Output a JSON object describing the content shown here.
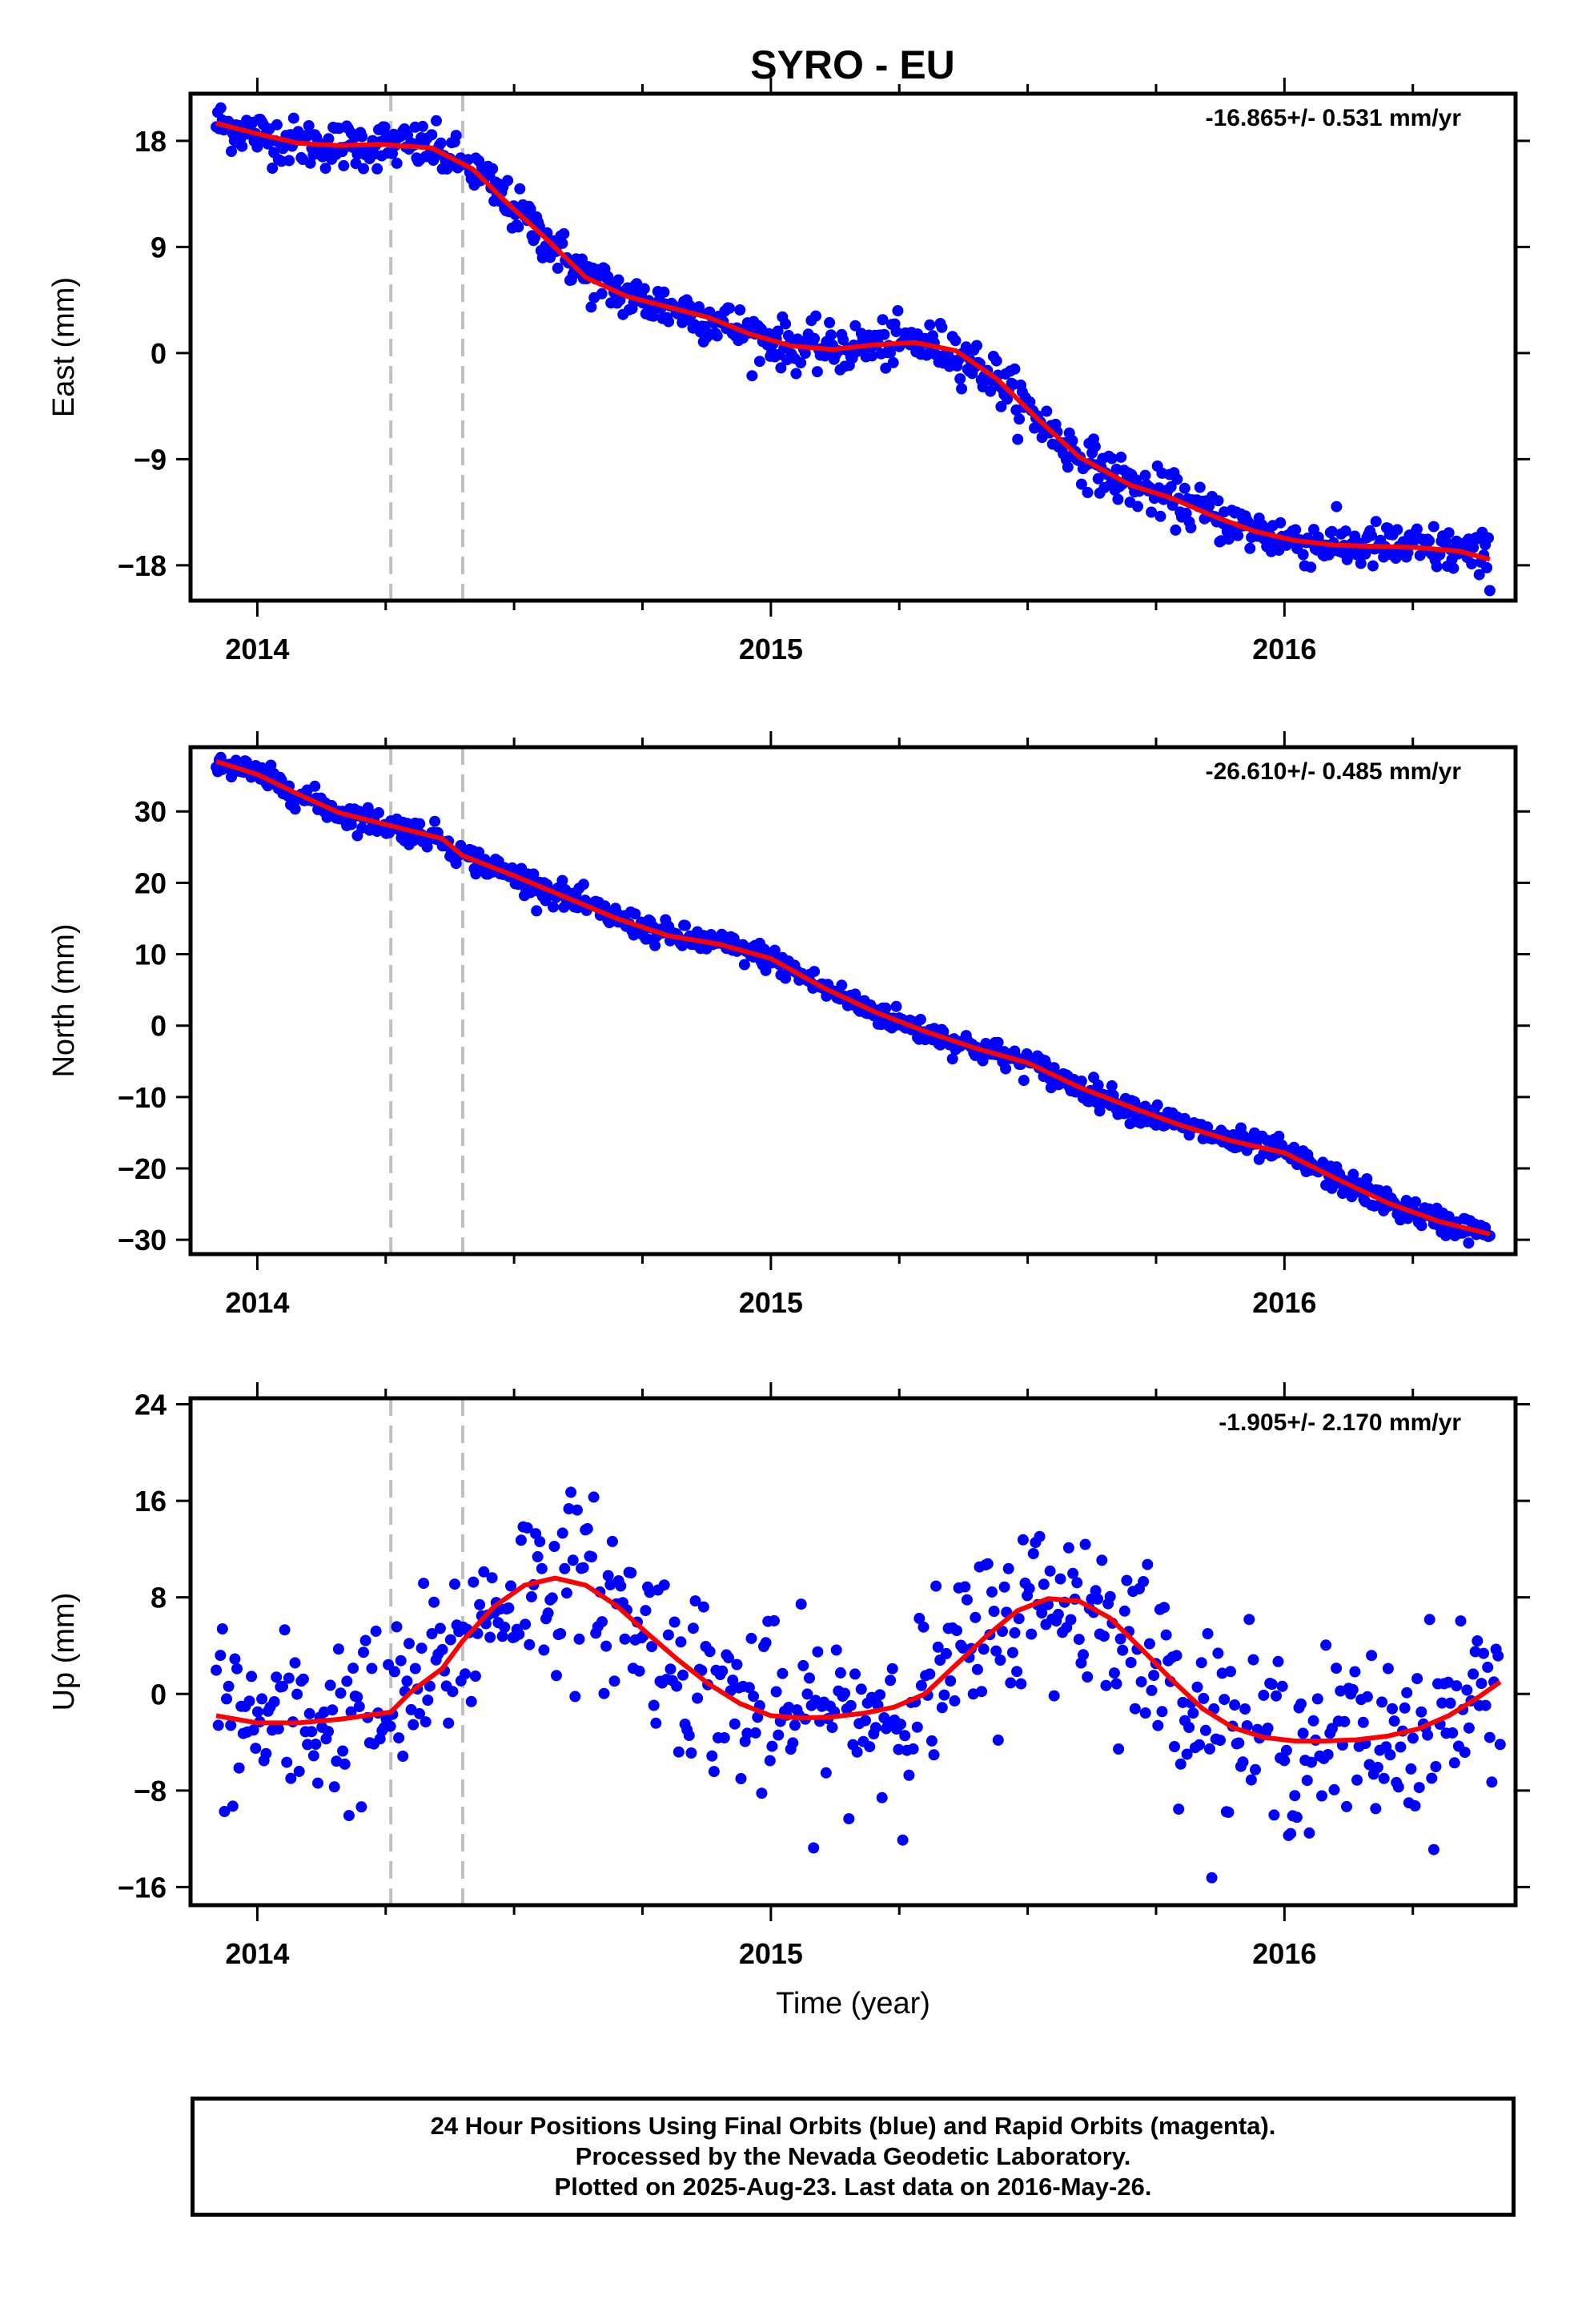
{
  "chart_data": [
    {
      "type": "scatter",
      "title": "SYRO - EU",
      "ylabel": "East (mm)",
      "xlabel": "",
      "rate_label": "-16.865+/- 0.531 mm/yr",
      "xlim": [
        2013.87,
        2016.45
      ],
      "ylim": [
        -21,
        22
      ],
      "yticks": [
        -18,
        -9,
        0,
        9,
        18
      ],
      "xticks": [
        2014,
        2015,
        2016
      ],
      "colors": {
        "points": "#0000ff",
        "fit": "#ff0000",
        "break_lines": "#c0c0c0"
      },
      "breaks": [
        2014.26,
        2014.4
      ],
      "series": [
        {
          "kind": "points",
          "x": [
            2013.92,
            2014.0,
            2014.08,
            2014.16,
            2014.24,
            2014.34,
            2014.42,
            2014.48,
            2014.56,
            2014.64,
            2014.72,
            2014.8,
            2014.88,
            2014.96,
            2015.04,
            2015.12,
            2015.2,
            2015.28,
            2015.36,
            2015.44,
            2015.52,
            2015.6,
            2015.7,
            2015.78,
            2015.86,
            2015.94,
            2016.02,
            2016.1,
            2016.18,
            2016.26,
            2016.34,
            2016.4
          ],
          "y": [
            19.5,
            18.6,
            17.8,
            17.6,
            17.7,
            17.4,
            15.6,
            13.0,
            9.8,
            6.4,
            4.8,
            3.9,
            3.0,
            1.6,
            0.6,
            0.3,
            0.7,
            0.9,
            0.2,
            -2.2,
            -5.6,
            -8.8,
            -11.2,
            -12.3,
            -13.8,
            -15.1,
            -15.9,
            -16.3,
            -16.4,
            -16.5,
            -16.8,
            -17.5
          ]
        },
        {
          "kind": "fit",
          "x": [
            2013.92,
            2014.0,
            2014.08,
            2014.16,
            2014.24,
            2014.34,
            2014.42,
            2014.48,
            2014.56,
            2014.64,
            2014.72,
            2014.8,
            2014.88,
            2014.96,
            2015.04,
            2015.12,
            2015.2,
            2015.28,
            2015.36,
            2015.44,
            2015.52,
            2015.6,
            2015.7,
            2015.78,
            2015.86,
            2015.94,
            2016.02,
            2016.1,
            2016.18,
            2016.26,
            2016.34,
            2016.4
          ],
          "y": [
            19.5,
            18.6,
            17.8,
            17.6,
            17.7,
            17.4,
            15.6,
            13.0,
            9.8,
            6.4,
            4.8,
            3.9,
            3.0,
            1.6,
            0.6,
            0.3,
            0.7,
            0.9,
            0.2,
            -2.2,
            -5.6,
            -8.8,
            -11.2,
            -12.3,
            -13.8,
            -15.1,
            -15.9,
            -16.3,
            -16.4,
            -16.5,
            -16.8,
            -17.5
          ]
        }
      ]
    },
    {
      "type": "scatter",
      "title": "",
      "ylabel": "North (mm)",
      "xlabel": "",
      "rate_label": "-26.610+/- 0.485 mm/yr",
      "xlim": [
        2013.87,
        2016.45
      ],
      "ylim": [
        -32,
        39
      ],
      "yticks": [
        -30,
        -20,
        -10,
        0,
        10,
        20,
        30
      ],
      "xticks": [
        2014,
        2015,
        2016
      ],
      "colors": {
        "points": "#0000ff",
        "fit": "#ff0000",
        "break_lines": "#c0c0c0"
      },
      "breaks": [
        2014.26,
        2014.4
      ],
      "series": [
        {
          "kind": "points",
          "x": [
            2013.92,
            2014.0,
            2014.08,
            2014.16,
            2014.26,
            2014.36,
            2014.4,
            2014.5,
            2014.6,
            2014.7,
            2014.8,
            2014.9,
            2015.0,
            2015.1,
            2015.2,
            2015.3,
            2015.4,
            2015.5,
            2015.6,
            2015.7,
            2015.8,
            2015.9,
            2016.0,
            2016.1,
            2016.2,
            2016.3,
            2016.4
          ],
          "y": [
            37.0,
            35.2,
            32.4,
            29.8,
            28.0,
            26.2,
            23.8,
            21.0,
            18.0,
            15.0,
            12.6,
            11.4,
            9.4,
            5.4,
            2.0,
            -0.8,
            -3.2,
            -5.2,
            -8.6,
            -11.4,
            -14.0,
            -16.2,
            -17.8,
            -21.4,
            -24.8,
            -27.4,
            -29.2
          ]
        },
        {
          "kind": "fit",
          "x": [
            2013.92,
            2014.0,
            2014.08,
            2014.16,
            2014.26,
            2014.36,
            2014.4,
            2014.5,
            2014.6,
            2014.7,
            2014.8,
            2014.9,
            2015.0,
            2015.1,
            2015.2,
            2015.3,
            2015.4,
            2015.5,
            2015.6,
            2015.7,
            2015.8,
            2015.9,
            2016.0,
            2016.1,
            2016.2,
            2016.3,
            2016.4
          ],
          "y": [
            37.0,
            35.2,
            32.4,
            29.8,
            28.0,
            26.2,
            23.8,
            21.0,
            18.0,
            15.0,
            12.6,
            11.4,
            9.4,
            5.4,
            2.0,
            -0.8,
            -3.2,
            -5.2,
            -8.6,
            -11.4,
            -14.0,
            -16.2,
            -17.8,
            -21.4,
            -24.8,
            -27.4,
            -29.2
          ]
        }
      ]
    },
    {
      "type": "scatter",
      "title": "",
      "ylabel": "Up (mm)",
      "xlabel": "Time (year)",
      "rate_label": "-1.905+/- 2.170 mm/yr",
      "xlim": [
        2013.87,
        2016.45
      ],
      "ylim": [
        -17.5,
        24.5
      ],
      "yticks": [
        -16,
        -8,
        0,
        8,
        16,
        24
      ],
      "xticks": [
        2014,
        2015,
        2016
      ],
      "colors": {
        "points": "#0000ff",
        "fit": "#ff0000",
        "break_lines": "#c0c0c0"
      },
      "breaks": [
        2014.26,
        2014.4
      ],
      "series": [
        {
          "kind": "points",
          "x": [
            2013.92,
            2014.0,
            2014.08,
            2014.16,
            2014.26,
            2014.3,
            2014.36,
            2014.4,
            2014.46,
            2014.52,
            2014.58,
            2014.64,
            2014.7,
            2014.76,
            2014.82,
            2014.88,
            2014.94,
            2015.0,
            2015.06,
            2015.12,
            2015.18,
            2015.24,
            2015.3,
            2015.36,
            2015.42,
            2015.48,
            2015.54,
            2015.6,
            2015.66,
            2015.72,
            2015.78,
            2015.84,
            2015.9,
            2015.96,
            2016.02,
            2016.08,
            2016.14,
            2016.2,
            2016.26,
            2016.32,
            2016.38,
            2016.42
          ],
          "y": [
            -1.8,
            -2.4,
            -2.4,
            -2.1,
            -1.5,
            0.2,
            2.1,
            4.4,
            7.2,
            9.0,
            9.6,
            9.0,
            7.3,
            5.0,
            2.8,
            0.8,
            -0.8,
            -1.8,
            -2.0,
            -1.9,
            -1.6,
            -1.1,
            0.0,
            2.4,
            4.8,
            6.9,
            7.9,
            7.7,
            6.3,
            3.8,
            1.2,
            -1.2,
            -2.8,
            -3.6,
            -3.9,
            -3.9,
            -3.8,
            -3.5,
            -2.9,
            -1.8,
            -0.2,
            1.0
          ]
        },
        {
          "kind": "fit",
          "x": [
            2013.92,
            2014.0,
            2014.08,
            2014.16,
            2014.26,
            2014.3,
            2014.36,
            2014.4,
            2014.46,
            2014.52,
            2014.58,
            2014.64,
            2014.7,
            2014.76,
            2014.82,
            2014.88,
            2014.94,
            2015.0,
            2015.06,
            2015.12,
            2015.18,
            2015.24,
            2015.3,
            2015.36,
            2015.42,
            2015.48,
            2015.54,
            2015.6,
            2015.66,
            2015.72,
            2015.78,
            2015.84,
            2015.9,
            2015.96,
            2016.02,
            2016.08,
            2016.14,
            2016.2,
            2016.26,
            2016.32,
            2016.38,
            2016.42
          ],
          "y": [
            -1.8,
            -2.4,
            -2.4,
            -2.1,
            -1.5,
            0.2,
            2.1,
            4.4,
            7.2,
            9.0,
            9.6,
            9.0,
            7.3,
            5.0,
            2.8,
            0.8,
            -0.8,
            -1.8,
            -2.0,
            -1.9,
            -1.6,
            -1.1,
            0.0,
            2.4,
            4.8,
            6.9,
            7.9,
            7.7,
            6.3,
            3.8,
            1.2,
            -1.2,
            -2.8,
            -3.6,
            -3.9,
            -3.9,
            -3.8,
            -3.5,
            -2.9,
            -1.8,
            -0.2,
            1.0
          ]
        }
      ]
    }
  ],
  "footer": {
    "line1": "24 Hour Positions Using Final Orbits (blue) and Rapid Orbits (magenta).",
    "line2": "Processed by the Nevada Geodetic Laboratory.",
    "line3": "Plotted on 2025-Aug-23. Last data on 2016-May-26."
  }
}
